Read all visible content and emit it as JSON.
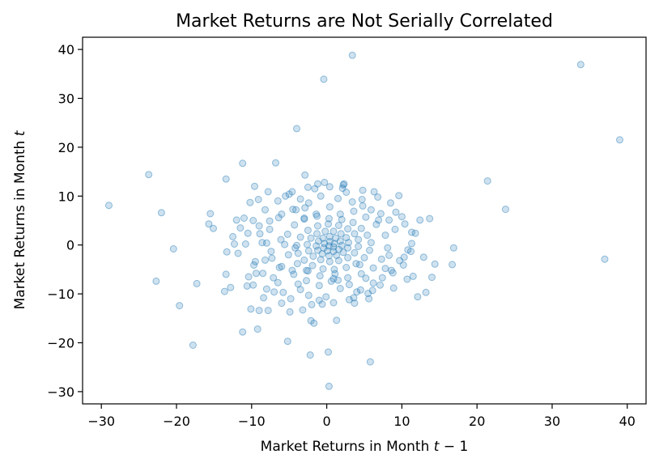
{
  "chart_data": {
    "type": "scatter",
    "title": "Market Returns are Not Serially Correlated",
    "xlabel": "Market Returns in Month t−1",
    "xlabel_prefix": "Market Returns in Month ",
    "xlabel_var": "t",
    "xlabel_suffix": " − 1",
    "ylabel": "Market Returns in Month t",
    "ylabel_prefix": "Market Returns in Month ",
    "ylabel_var": "t",
    "xlim": [
      -32.5,
      42.5
    ],
    "ylim": [
      -32.5,
      42.5
    ],
    "xticks": [
      -30,
      -20,
      -10,
      0,
      10,
      20,
      30,
      40
    ],
    "yticks": [
      -30,
      -20,
      -10,
      0,
      10,
      20,
      30,
      40
    ],
    "xtick_labels": [
      "−30",
      "−20",
      "−10",
      "0",
      "10",
      "20",
      "30",
      "40"
    ],
    "ytick_labels": [
      "−30",
      "−20",
      "−10",
      "0",
      "10",
      "20",
      "30",
      "40"
    ],
    "grid": false,
    "color": "#1f77b4",
    "series": [
      {
        "points": [
          [
            -29,
            8.1
          ],
          [
            -23.7,
            14.4
          ],
          [
            -22.7,
            -7.4
          ],
          [
            -22,
            6.6
          ],
          [
            -20.4,
            -0.8
          ],
          [
            -19.6,
            -12.4
          ],
          [
            -17.8,
            -20.5
          ],
          [
            -17.3,
            -7.9
          ],
          [
            -15.7,
            4.3
          ],
          [
            -15.5,
            6.4
          ],
          [
            -15.1,
            3.4
          ],
          [
            -13.6,
            -9.5
          ],
          [
            -13.4,
            13.5
          ],
          [
            -13.3,
            -1.4
          ],
          [
            -13.4,
            -6.0
          ],
          [
            -12.8,
            -8.7
          ],
          [
            -12.5,
            1.7
          ],
          [
            -12.3,
            0.2
          ],
          [
            -12.0,
            5.1
          ],
          [
            -11.5,
            3.5
          ],
          [
            -11.2,
            16.7
          ],
          [
            -11.2,
            -17.8
          ],
          [
            -11.0,
            5.5
          ],
          [
            -10.6,
            -8.4
          ],
          [
            -10.4,
            -6.5
          ],
          [
            -10.1,
            -13.1
          ],
          [
            -9.8,
            -8.2
          ],
          [
            -9.7,
            -4.1
          ],
          [
            -9.6,
            12.0
          ],
          [
            -9.4,
            -5.8
          ],
          [
            -9.2,
            -17.2
          ],
          [
            -9.0,
            -13.4
          ],
          [
            -8.9,
            2.3
          ],
          [
            -8.6,
            0.5
          ],
          [
            -8.4,
            -10.8
          ],
          [
            -8.2,
            -3.1
          ],
          [
            -8.0,
            -9.0
          ],
          [
            -7.8,
            -13.4
          ],
          [
            -7.6,
            4.9
          ],
          [
            -7.4,
            -1.3
          ],
          [
            -7.1,
            -6.7
          ],
          [
            -6.8,
            16.8
          ],
          [
            -6.5,
            -7.7
          ],
          [
            -6.3,
            -4.6
          ],
          [
            -6.1,
            1.1
          ],
          [
            -6.0,
            -11.9
          ],
          [
            -5.8,
            -9.7
          ],
          [
            -5.2,
            -19.7
          ],
          [
            -4.9,
            -13.7
          ],
          [
            -4.6,
            -5.2
          ],
          [
            -4.2,
            -0.6
          ],
          [
            -4.0,
            23.8
          ],
          [
            -3.8,
            -8.0
          ],
          [
            -3.5,
            -9.1
          ],
          [
            -3.2,
            -13.3
          ],
          [
            -2.9,
            14.3
          ],
          [
            -2.7,
            -5.2
          ],
          [
            -2.4,
            -10.3
          ],
          [
            -2.2,
            -22.5
          ],
          [
            -2.1,
            -15.5
          ],
          [
            -1.7,
            -16.0
          ],
          [
            -1.2,
            12.5
          ],
          [
            -1.0,
            -11.3
          ],
          [
            -0.6,
            -12.1
          ],
          [
            -0.4,
            33.9
          ],
          [
            -0.1,
            -10.6
          ],
          [
            0.2,
            -21.9
          ],
          [
            0.3,
            -28.9
          ],
          [
            0.6,
            -7.4
          ],
          [
            1.1,
            -5.9
          ],
          [
            1.3,
            -15.4
          ],
          [
            1.8,
            -8.9
          ],
          [
            2.2,
            12.3
          ],
          [
            2.6,
            10.8
          ],
          [
            3.0,
            -11.2
          ],
          [
            3.4,
            38.8
          ],
          [
            3.7,
            -11.9
          ],
          [
            4.0,
            -9.6
          ],
          [
            4.4,
            -4.0
          ],
          [
            4.8,
            8.0
          ],
          [
            5.2,
            -6.8
          ],
          [
            5.6,
            -11.0
          ],
          [
            5.8,
            -23.9
          ],
          [
            6.1,
            -9.3
          ],
          [
            6.3,
            10.9
          ],
          [
            6.9,
            5.1
          ],
          [
            7.4,
            -6.7
          ],
          [
            7.8,
            -4.8
          ],
          [
            8.3,
            -2.1
          ],
          [
            8.9,
            -8.8
          ],
          [
            9.1,
            3.2
          ],
          [
            9.6,
            10.1
          ],
          [
            10.2,
            -4.1
          ],
          [
            10.7,
            -7.0
          ],
          [
            11.2,
            -1.3
          ],
          [
            11.5,
            -6.4
          ],
          [
            12.1,
            -10.6
          ],
          [
            12.4,
            5.1
          ],
          [
            12.9,
            -2.5
          ],
          [
            13.2,
            -9.7
          ],
          [
            13.7,
            5.4
          ],
          [
            14.0,
            -6.6
          ],
          [
            14.4,
            -3.9
          ],
          [
            16.7,
            -4.0
          ],
          [
            16.9,
            -0.6
          ],
          [
            21.4,
            13.1
          ],
          [
            23.8,
            7.3
          ],
          [
            33.8,
            36.9
          ],
          [
            37.0,
            -2.9
          ],
          [
            39.0,
            21.5
          ],
          [
            -10.2,
            8.7
          ],
          [
            -9.1,
            9.3
          ],
          [
            -6.0,
            6.3
          ],
          [
            -5.5,
            10.0
          ],
          [
            -7.8,
            10.9
          ],
          [
            -3.5,
            9.4
          ],
          [
            -5.0,
            10.4
          ],
          [
            -4.1,
            7.2
          ],
          [
            -3.0,
            5.3
          ],
          [
            -2.4,
            8.6
          ],
          [
            -1.6,
            11.5
          ],
          [
            -0.8,
            10.0
          ],
          [
            0.4,
            11.9
          ],
          [
            1.5,
            9.5
          ],
          [
            2.1,
            11.6
          ],
          [
            3.4,
            8.8
          ],
          [
            4.7,
            9.3
          ],
          [
            5.9,
            7.2
          ],
          [
            7.2,
            6.4
          ],
          [
            8.3,
            5.1
          ],
          [
            9.2,
            6.7
          ],
          [
            10.4,
            4.3
          ],
          [
            11.3,
            0.3
          ],
          [
            11.8,
            2.4
          ],
          [
            10.3,
            -2.5
          ],
          [
            8.6,
            -5.2
          ],
          [
            6.2,
            -7.8
          ],
          [
            4.5,
            -9.2
          ],
          [
            3.0,
            -8.1
          ],
          [
            1.5,
            -7.2
          ],
          [
            -1.0,
            -8.3
          ],
          [
            -2.7,
            -7.3
          ],
          [
            -4.4,
            -6.0
          ],
          [
            -6.0,
            -4.4
          ],
          [
            -7.3,
            -2.7
          ],
          [
            -8.0,
            0.4
          ],
          [
            -7.6,
            3.2
          ],
          [
            -6.4,
            5.6
          ],
          [
            -4.5,
            7.3
          ],
          [
            -2.9,
            7.6
          ],
          [
            -1.4,
            6.3
          ],
          [
            0.4,
            7.8
          ],
          [
            1.8,
            6.3
          ],
          [
            3.6,
            6.9
          ],
          [
            5.2,
            5.7
          ],
          [
            6.6,
            4.2
          ],
          [
            7.8,
            2.0
          ],
          [
            8.1,
            -0.6
          ],
          [
            7.3,
            -2.9
          ],
          [
            6.2,
            -4.7
          ],
          [
            4.6,
            -5.9
          ],
          [
            2.8,
            -6.7
          ],
          [
            0.9,
            -6.9
          ],
          [
            -0.9,
            -6.3
          ],
          [
            -2.5,
            -5.3
          ],
          [
            -3.9,
            -3.8
          ],
          [
            -5.1,
            -2.0
          ],
          [
            -5.6,
            0.1
          ],
          [
            -5.2,
            2.2
          ],
          [
            -4.3,
            4.1
          ],
          [
            -3.0,
            5.5
          ],
          [
            -1.3,
            5.9
          ],
          [
            0.3,
            5.4
          ],
          [
            2.0,
            5.2
          ],
          [
            3.5,
            4.6
          ],
          [
            4.6,
            3.4
          ],
          [
            5.4,
            2.0
          ],
          [
            5.9,
            0.5
          ],
          [
            5.7,
            -1.1
          ],
          [
            5.0,
            -2.6
          ],
          [
            3.9,
            -3.8
          ],
          [
            2.6,
            -4.6
          ],
          [
            1.0,
            -5.0
          ],
          [
            -0.5,
            -4.9
          ],
          [
            -1.9,
            -4.2
          ],
          [
            -3.0,
            -3.1
          ],
          [
            -3.8,
            -1.7
          ],
          [
            -4.0,
            -0.1
          ],
          [
            -3.5,
            1.6
          ],
          [
            -2.5,
            3.0
          ],
          [
            -1.2,
            3.9
          ],
          [
            0.2,
            4.3
          ],
          [
            1.6,
            4.0
          ],
          [
            2.8,
            3.3
          ],
          [
            3.7,
            2.3
          ],
          [
            4.2,
            1.1
          ],
          [
            4.2,
            -0.3
          ],
          [
            3.7,
            -1.6
          ],
          [
            2.8,
            -2.6
          ],
          [
            1.6,
            -3.2
          ],
          [
            0.4,
            -3.4
          ],
          [
            -0.8,
            -3.0
          ],
          [
            -1.8,
            -2.3
          ],
          [
            -2.4,
            -1.2
          ],
          [
            -2.6,
            0.1
          ],
          [
            -2.1,
            1.4
          ],
          [
            -1.3,
            2.3
          ],
          [
            -0.2,
            2.8
          ],
          [
            0.9,
            2.8
          ],
          [
            1.9,
            2.3
          ],
          [
            2.6,
            1.5
          ],
          [
            2.9,
            0.5
          ],
          [
            2.8,
            -0.6
          ],
          [
            2.2,
            -1.5
          ],
          [
            1.3,
            -2.1
          ],
          [
            0.3,
            -2.2
          ],
          [
            -0.6,
            -1.8
          ],
          [
            -1.2,
            -1.1
          ],
          [
            -1.4,
            -0.2
          ],
          [
            -1.1,
            0.8
          ],
          [
            -0.5,
            1.4
          ],
          [
            0.4,
            1.7
          ],
          [
            1.2,
            1.4
          ],
          [
            1.8,
            0.8
          ],
          [
            2.0,
            -0.1
          ],
          [
            1.6,
            -0.9
          ],
          [
            0.9,
            -1.3
          ],
          [
            0.1,
            -1.2
          ],
          [
            -0.4,
            -0.6
          ],
          [
            -0.3,
            0.3
          ],
          [
            0.4,
            0.7
          ],
          [
            1.0,
            0.3
          ],
          [
            0.9,
            -0.4
          ],
          [
            0.3,
            -0.2
          ],
          [
            -9.5,
            -3.4
          ],
          [
            -10.8,
            0.2
          ],
          [
            -9.0,
            3.9
          ],
          [
            -11.8,
            -1.7
          ],
          [
            -8.5,
            -5.8
          ],
          [
            -7.0,
            -9.6
          ],
          [
            -4.8,
            -11.0
          ],
          [
            -2.0,
            -12.2
          ],
          [
            0.9,
            -11.8
          ],
          [
            3.6,
            -10.8
          ],
          [
            5.5,
            -9.9
          ],
          [
            7.1,
            -8.2
          ],
          [
            8.8,
            -5.7
          ],
          [
            9.7,
            -3.2
          ],
          [
            10.8,
            -1.0
          ],
          [
            11.3,
            2.6
          ],
          [
            10.0,
            5.8
          ],
          [
            8.5,
            8.6
          ],
          [
            6.8,
            9.8
          ],
          [
            4.8,
            11.2
          ],
          [
            2.3,
            12.5
          ],
          [
            -0.3,
            12.8
          ],
          [
            -2.5,
            11.8
          ],
          [
            -4.6,
            10.9
          ],
          [
            -6.5,
            9.0
          ],
          [
            -8.2,
            7.2
          ],
          [
            -9.8,
            5.0
          ],
          [
            -10.5,
            2.4
          ]
        ]
      }
    ]
  }
}
